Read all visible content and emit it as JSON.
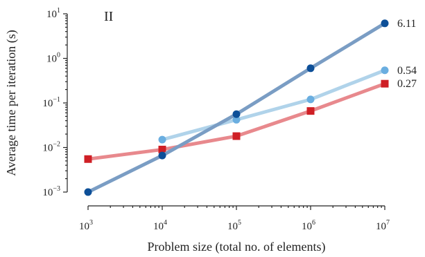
{
  "chart_data": {
    "type": "line",
    "panel_label": "II",
    "xlabel": "Problem size (total no. of elements)",
    "ylabel": "Average time per iteration (s)",
    "xscale": "log",
    "yscale": "log",
    "xlim": [
      1000,
      10000000
    ],
    "ylim": [
      0.001,
      10
    ],
    "x_ticks": [
      {
        "value": 1000,
        "base": "10",
        "exp": "3"
      },
      {
        "value": 10000,
        "base": "10",
        "exp": "4"
      },
      {
        "value": 100000,
        "base": "10",
        "exp": "5"
      },
      {
        "value": 1000000,
        "base": "10",
        "exp": "6"
      },
      {
        "value": 10000000,
        "base": "10",
        "exp": "7"
      }
    ],
    "y_ticks": [
      {
        "value": 0.001,
        "base": "10",
        "exp": "−3"
      },
      {
        "value": 0.01,
        "base": "10",
        "exp": "−2"
      },
      {
        "value": 0.1,
        "base": "10",
        "exp": "−1"
      },
      {
        "value": 1,
        "base": "10",
        "exp": "0"
      },
      {
        "value": 10,
        "base": "10",
        "exp": "1"
      }
    ],
    "grid": false,
    "legend": "none",
    "series": [
      {
        "color": "#cf1f25",
        "line_color": "#e8898d",
        "marker": "square",
        "x": [
          1000,
          10000,
          100000,
          1000000,
          10000000
        ],
        "y": [
          0.0055,
          0.009,
          0.018,
          0.066,
          0.27
        ],
        "end_label": "0.27"
      },
      {
        "color": "#6aaee0",
        "line_color": "#b0d3ea",
        "marker": "circle",
        "x": [
          10000,
          100000,
          1000000,
          10000000
        ],
        "y": [
          0.015,
          0.042,
          0.12,
          0.54
        ],
        "end_label": "0.54"
      },
      {
        "color": "#0d4f98",
        "line_color": "#7a9dc4",
        "marker": "circle",
        "x": [
          1000,
          10000,
          100000,
          1000000,
          10000000
        ],
        "y": [
          0.001,
          0.0066,
          0.056,
          0.6,
          6.11
        ],
        "end_label": "6.11"
      }
    ]
  }
}
